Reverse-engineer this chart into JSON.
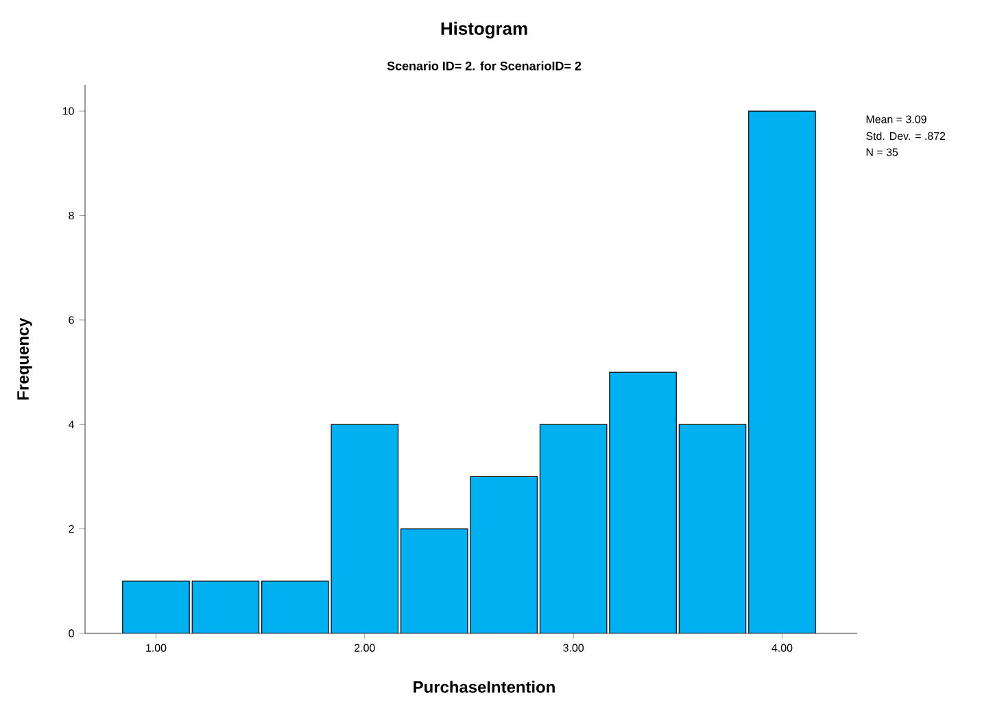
{
  "chart_data": {
    "type": "histogram",
    "title": "Histogram",
    "subtitle": "Scenario ID= 2.  for ScenarioID= 2",
    "xlabel": "PurchaseIntention",
    "ylabel": "Frequency",
    "bins": [
      0.8333,
      1.1667,
      1.5,
      1.8333,
      2.1667,
      2.5,
      2.8333,
      3.1667,
      3.5,
      3.8333,
      4.1667
    ],
    "values": [
      1,
      1,
      1,
      4,
      2,
      3,
      4,
      5,
      4,
      10
    ],
    "color": "#00b0f0",
    "xlim": [
      0.66,
      4.36
    ],
    "ylim": [
      0,
      10.5
    ],
    "xticks": [
      {
        "value": 1,
        "label": "1.00"
      },
      {
        "value": 2,
        "label": "2.00"
      },
      {
        "value": 3,
        "label": "3.00"
      },
      {
        "value": 4,
        "label": "4.00"
      }
    ],
    "yticks": [
      0,
      2,
      4,
      6,
      8,
      10
    ],
    "grid": false,
    "annotations": [
      "Mean = 3.09",
      "Std. Dev. = .872",
      "N = 35"
    ]
  }
}
